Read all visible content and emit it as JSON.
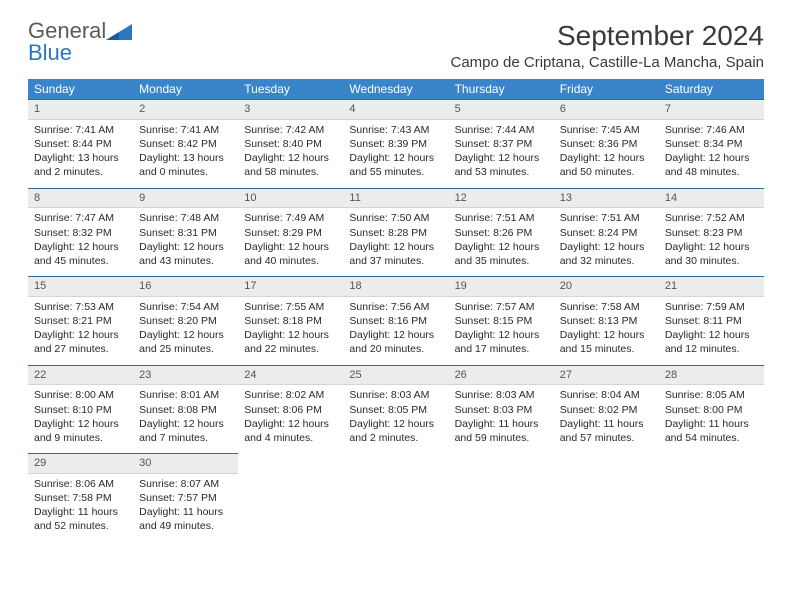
{
  "brand": {
    "part1": "General",
    "part2": "Blue"
  },
  "title": "September 2024",
  "location": "Campo de Criptana, Castille-La Mancha, Spain",
  "colors": {
    "header_bg": "#3a84c9",
    "header_text": "#ffffff",
    "daynum_bg": "#ececec",
    "daynum_border_top": "#2c6aa3",
    "brand_gray": "#5a5a5a",
    "brand_blue": "#2b78c2",
    "text": "#2a2a2a"
  },
  "weekdays": [
    "Sunday",
    "Monday",
    "Tuesday",
    "Wednesday",
    "Thursday",
    "Friday",
    "Saturday"
  ],
  "weeks": [
    [
      {
        "day": "1",
        "sunrise": "7:41 AM",
        "sunset": "8:44 PM",
        "daylight": "13 hours and 2 minutes."
      },
      {
        "day": "2",
        "sunrise": "7:41 AM",
        "sunset": "8:42 PM",
        "daylight": "13 hours and 0 minutes."
      },
      {
        "day": "3",
        "sunrise": "7:42 AM",
        "sunset": "8:40 PM",
        "daylight": "12 hours and 58 minutes."
      },
      {
        "day": "4",
        "sunrise": "7:43 AM",
        "sunset": "8:39 PM",
        "daylight": "12 hours and 55 minutes."
      },
      {
        "day": "5",
        "sunrise": "7:44 AM",
        "sunset": "8:37 PM",
        "daylight": "12 hours and 53 minutes."
      },
      {
        "day": "6",
        "sunrise": "7:45 AM",
        "sunset": "8:36 PM",
        "daylight": "12 hours and 50 minutes."
      },
      {
        "day": "7",
        "sunrise": "7:46 AM",
        "sunset": "8:34 PM",
        "daylight": "12 hours and 48 minutes."
      }
    ],
    [
      {
        "day": "8",
        "sunrise": "7:47 AM",
        "sunset": "8:32 PM",
        "daylight": "12 hours and 45 minutes."
      },
      {
        "day": "9",
        "sunrise": "7:48 AM",
        "sunset": "8:31 PM",
        "daylight": "12 hours and 43 minutes."
      },
      {
        "day": "10",
        "sunrise": "7:49 AM",
        "sunset": "8:29 PM",
        "daylight": "12 hours and 40 minutes."
      },
      {
        "day": "11",
        "sunrise": "7:50 AM",
        "sunset": "8:28 PM",
        "daylight": "12 hours and 37 minutes."
      },
      {
        "day": "12",
        "sunrise": "7:51 AM",
        "sunset": "8:26 PM",
        "daylight": "12 hours and 35 minutes."
      },
      {
        "day": "13",
        "sunrise": "7:51 AM",
        "sunset": "8:24 PM",
        "daylight": "12 hours and 32 minutes."
      },
      {
        "day": "14",
        "sunrise": "7:52 AM",
        "sunset": "8:23 PM",
        "daylight": "12 hours and 30 minutes."
      }
    ],
    [
      {
        "day": "15",
        "sunrise": "7:53 AM",
        "sunset": "8:21 PM",
        "daylight": "12 hours and 27 minutes."
      },
      {
        "day": "16",
        "sunrise": "7:54 AM",
        "sunset": "8:20 PM",
        "daylight": "12 hours and 25 minutes."
      },
      {
        "day": "17",
        "sunrise": "7:55 AM",
        "sunset": "8:18 PM",
        "daylight": "12 hours and 22 minutes."
      },
      {
        "day": "18",
        "sunrise": "7:56 AM",
        "sunset": "8:16 PM",
        "daylight": "12 hours and 20 minutes."
      },
      {
        "day": "19",
        "sunrise": "7:57 AM",
        "sunset": "8:15 PM",
        "daylight": "12 hours and 17 minutes."
      },
      {
        "day": "20",
        "sunrise": "7:58 AM",
        "sunset": "8:13 PM",
        "daylight": "12 hours and 15 minutes."
      },
      {
        "day": "21",
        "sunrise": "7:59 AM",
        "sunset": "8:11 PM",
        "daylight": "12 hours and 12 minutes."
      }
    ],
    [
      {
        "day": "22",
        "sunrise": "8:00 AM",
        "sunset": "8:10 PM",
        "daylight": "12 hours and 9 minutes."
      },
      {
        "day": "23",
        "sunrise": "8:01 AM",
        "sunset": "8:08 PM",
        "daylight": "12 hours and 7 minutes."
      },
      {
        "day": "24",
        "sunrise": "8:02 AM",
        "sunset": "8:06 PM",
        "daylight": "12 hours and 4 minutes."
      },
      {
        "day": "25",
        "sunrise": "8:03 AM",
        "sunset": "8:05 PM",
        "daylight": "12 hours and 2 minutes."
      },
      {
        "day": "26",
        "sunrise": "8:03 AM",
        "sunset": "8:03 PM",
        "daylight": "11 hours and 59 minutes."
      },
      {
        "day": "27",
        "sunrise": "8:04 AM",
        "sunset": "8:02 PM",
        "daylight": "11 hours and 57 minutes."
      },
      {
        "day": "28",
        "sunrise": "8:05 AM",
        "sunset": "8:00 PM",
        "daylight": "11 hours and 54 minutes."
      }
    ],
    [
      {
        "day": "29",
        "sunrise": "8:06 AM",
        "sunset": "7:58 PM",
        "daylight": "11 hours and 52 minutes."
      },
      {
        "day": "30",
        "sunrise": "8:07 AM",
        "sunset": "7:57 PM",
        "daylight": "11 hours and 49 minutes."
      },
      null,
      null,
      null,
      null,
      null
    ]
  ],
  "labels": {
    "sunrise": "Sunrise:",
    "sunset": "Sunset:",
    "daylight": "Daylight:"
  }
}
